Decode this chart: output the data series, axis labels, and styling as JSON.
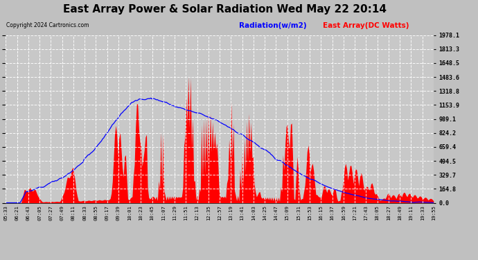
{
  "title": "East Array Power & Solar Radiation Wed May 22 20:14",
  "copyright": "Copyright 2024 Cartronics.com",
  "legend_radiation": "Radiation(w/m2)",
  "legend_east_array": "East Array(DC Watts)",
  "legend_radiation_color": "blue",
  "legend_east_array_color": "red",
  "ymax": 1978.1,
  "ymin": 0.0,
  "yticks": [
    0.0,
    164.8,
    329.7,
    494.5,
    659.4,
    824.2,
    989.1,
    1153.9,
    1318.8,
    1483.6,
    1648.5,
    1813.3,
    1978.1
  ],
  "background_color": "#c8c8c8",
  "plot_bg_color": "#c8c8c8",
  "grid_color_h": "#ffffff",
  "grid_color_v": "#ffffff",
  "x_labels": [
    "05:33",
    "06:21",
    "06:43",
    "07:05",
    "07:27",
    "07:49",
    "08:11",
    "08:33",
    "08:55",
    "09:17",
    "09:39",
    "10:01",
    "10:23",
    "10:45",
    "11:07",
    "11:29",
    "11:51",
    "12:13",
    "12:35",
    "12:57",
    "13:19",
    "13:41",
    "14:03",
    "14:25",
    "14:47",
    "15:09",
    "15:31",
    "15:53",
    "16:15",
    "16:37",
    "16:59",
    "17:21",
    "17:43",
    "18:05",
    "18:27",
    "18:49",
    "19:11",
    "19:33",
    "19:55"
  ]
}
